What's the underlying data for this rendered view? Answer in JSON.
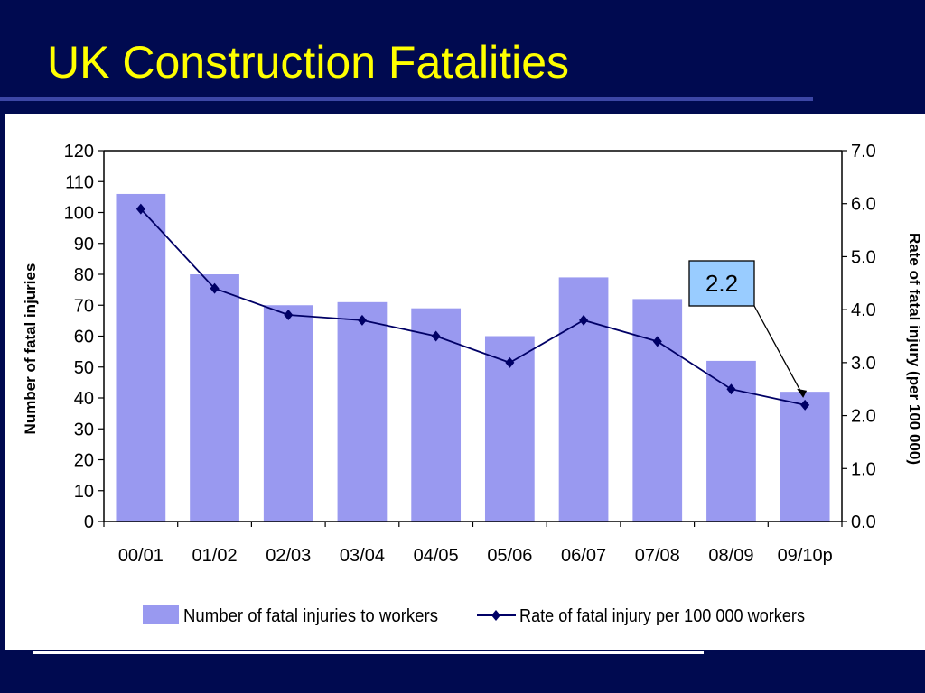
{
  "slide": {
    "title": "UK Construction Fatalities"
  },
  "colors": {
    "background": "#000a50",
    "title": "#ffff00",
    "bar": "#9999f0",
    "line": "#000066",
    "callout_fill": "#99ccff"
  },
  "chart_data": {
    "type": "bar",
    "title": "",
    "categories": [
      "00/01",
      "01/02",
      "02/03",
      "03/04",
      "04/05",
      "05/06",
      "06/07",
      "07/08",
      "08/09",
      "09/10p"
    ],
    "series": [
      {
        "name": "Number of fatal injuries to workers",
        "type": "bar",
        "axis": "left",
        "values": [
          106,
          80,
          70,
          71,
          69,
          60,
          79,
          72,
          52,
          42
        ]
      },
      {
        "name": "Rate of fatal injury per 100 000 workers",
        "type": "line",
        "axis": "right",
        "values": [
          5.9,
          4.4,
          3.9,
          3.8,
          3.5,
          3.0,
          3.8,
          3.4,
          2.5,
          2.2
        ]
      }
    ],
    "ylabel": "Number of fatal injuries",
    "ylim": [
      0,
      120
    ],
    "yticks": [
      "0",
      "10",
      "20",
      "30",
      "40",
      "50",
      "60",
      "70",
      "80",
      "90",
      "100",
      "110",
      "120"
    ],
    "y2label": "Rate of fatal injury (per 100 000)",
    "y2lim": [
      0,
      7
    ],
    "y2ticks": [
      "0.0",
      "1.0",
      "2.0",
      "3.0",
      "4.0",
      "5.0",
      "6.0",
      "7.0"
    ],
    "annotation": {
      "text": "2.2",
      "category": "09/10p"
    },
    "legend": {
      "placement": "bottom",
      "items": [
        "Number of fatal injuries to workers",
        "Rate of fatal injury per 100 000 workers"
      ]
    },
    "grid": false
  }
}
